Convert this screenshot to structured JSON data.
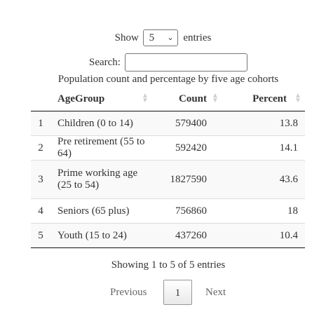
{
  "length_control": {
    "show_label": "Show",
    "selected": "5",
    "entries_label": "entries"
  },
  "search": {
    "label": "Search:",
    "value": ""
  },
  "table": {
    "caption": "Population count and percentage by five age cohorts",
    "columns": {
      "agegroup": "AgeGroup",
      "count": "Count",
      "percent": "Percent"
    },
    "rows": [
      {
        "n": "1",
        "agegroup": "Children (0 to 14)",
        "count": "579400",
        "percent": "13.8"
      },
      {
        "n": "2",
        "agegroup": "Pre retirement (55 to 64)",
        "count": "592420",
        "percent": "14.1"
      },
      {
        "n": "3",
        "agegroup": "Prime working age (25 to 54)",
        "count": "1827590",
        "percent": "43.6"
      },
      {
        "n": "4",
        "agegroup": "Seniors (65 plus)",
        "count": "756860",
        "percent": "18"
      },
      {
        "n": "5",
        "agegroup": "Youth (15 to 24)",
        "count": "437260",
        "percent": "10.4"
      }
    ]
  },
  "info": "Showing 1 to 5 of 5 entries",
  "pagination": {
    "previous": "Previous",
    "current": "1",
    "next": "Next"
  }
}
